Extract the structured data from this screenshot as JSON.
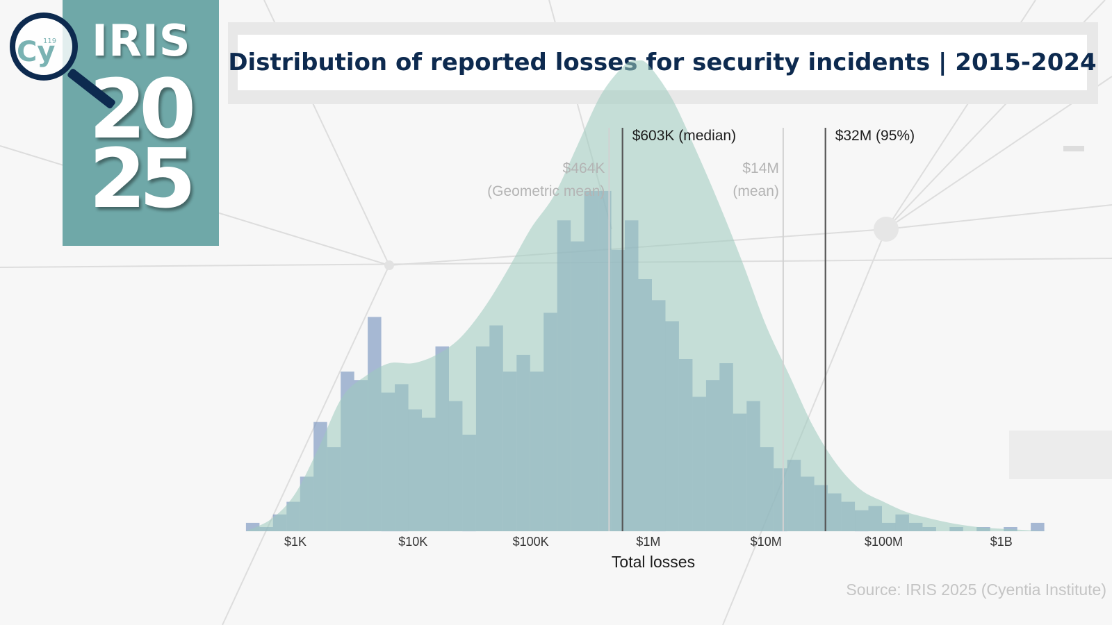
{
  "logo": {
    "symbol": "Cy",
    "atomic_number": "119",
    "word": "IRIS",
    "year_top": "20",
    "year_bottom": "25"
  },
  "title": "Distribution of reported losses for security incidents | 2015-2024",
  "source": "Source: IRIS 2025 (Cyentia Institute)",
  "colors": {
    "bars": "#7b97c0",
    "density": "#9ccabe",
    "overlap": "#7aa8c0",
    "title_text": "#0d2a4f",
    "logo_bg": "#6fa8a8"
  },
  "chart_data": {
    "type": "bar",
    "title": "Distribution of reported losses for security incidents | 2015-2024",
    "xlabel": "Total losses",
    "ylabel": "",
    "x_scale": "log10",
    "x_tick_values": [
      1000,
      10000,
      100000,
      1000000,
      10000000,
      100000000,
      1000000000
    ],
    "x_tick_labels": [
      "$1K",
      "$10K",
      "$100K",
      "$1M",
      "$10M",
      "$100M",
      "$1B"
    ],
    "y_axis_shown": false,
    "grid": false,
    "bin_log10_width": 0.115,
    "series": [
      {
        "kind": "histogram",
        "bin_log10_start": [
          2.58,
          2.695,
          2.81,
          2.925,
          3.04,
          3.155,
          3.27,
          3.385,
          3.5,
          3.615,
          3.73,
          3.845,
          3.96,
          4.075,
          4.19,
          4.305,
          4.42,
          4.535,
          4.65,
          4.765,
          4.88,
          4.995,
          5.11,
          5.225,
          5.34,
          5.455,
          5.57,
          5.685,
          5.8,
          5.915,
          6.03,
          6.145,
          6.26,
          6.375,
          6.49,
          6.605,
          6.72,
          6.835,
          6.95,
          7.065,
          7.18,
          7.295,
          7.41,
          7.525,
          7.64,
          7.755,
          7.87,
          7.985,
          8.1,
          8.215,
          8.33,
          8.445,
          8.56,
          8.675,
          8.79,
          8.905,
          9.02,
          9.135,
          9.25
        ],
        "values": [
          2,
          1,
          4,
          7,
          13,
          26,
          20,
          38,
          36,
          51,
          33,
          35,
          29,
          27,
          44,
          31,
          23,
          44,
          49,
          38,
          42,
          38,
          52,
          74,
          69,
          81,
          81,
          67,
          74,
          60,
          55,
          50,
          41,
          32,
          36,
          40,
          28,
          31,
          20,
          15,
          17,
          13,
          11,
          9,
          7,
          5,
          6,
          2,
          4,
          2,
          1,
          0,
          1,
          0,
          1,
          0,
          1,
          0,
          2
        ]
      },
      {
        "kind": "density",
        "x_log10": [
          2.58,
          2.8,
          3.0,
          3.2,
          3.4,
          3.6,
          3.8,
          4.0,
          4.2,
          4.4,
          4.6,
          4.8,
          5.0,
          5.2,
          5.4,
          5.6,
          5.8,
          5.9,
          6.0,
          6.2,
          6.4,
          6.6,
          6.8,
          7.0,
          7.2,
          7.4,
          7.6,
          7.8,
          8.0,
          8.2,
          8.4,
          8.6,
          8.8,
          9.0,
          9.2,
          9.4
        ],
        "values": [
          0,
          3,
          9,
          20,
          32,
          37,
          40,
          40,
          42,
          46,
          53,
          62,
          72,
          80,
          92,
          104,
          111,
          112,
          111,
          103,
          91,
          78,
          64,
          49,
          37,
          25,
          16,
          10,
          7,
          4.5,
          3,
          1.8,
          1,
          0.6,
          0.3,
          0
        ]
      }
    ],
    "reference_lines": [
      {
        "value": 464000,
        "label": "$464K",
        "sublabel": "(Geometric mean)",
        "style": "light"
      },
      {
        "value": 603000,
        "label": "$603K (median)",
        "sublabel": "",
        "style": "dark"
      },
      {
        "value": 14000000,
        "label": "$14M",
        "sublabel": "(mean)",
        "style": "light"
      },
      {
        "value": 32000000,
        "label": "$32M (95%)",
        "sublabel": "",
        "style": "dark"
      }
    ]
  }
}
